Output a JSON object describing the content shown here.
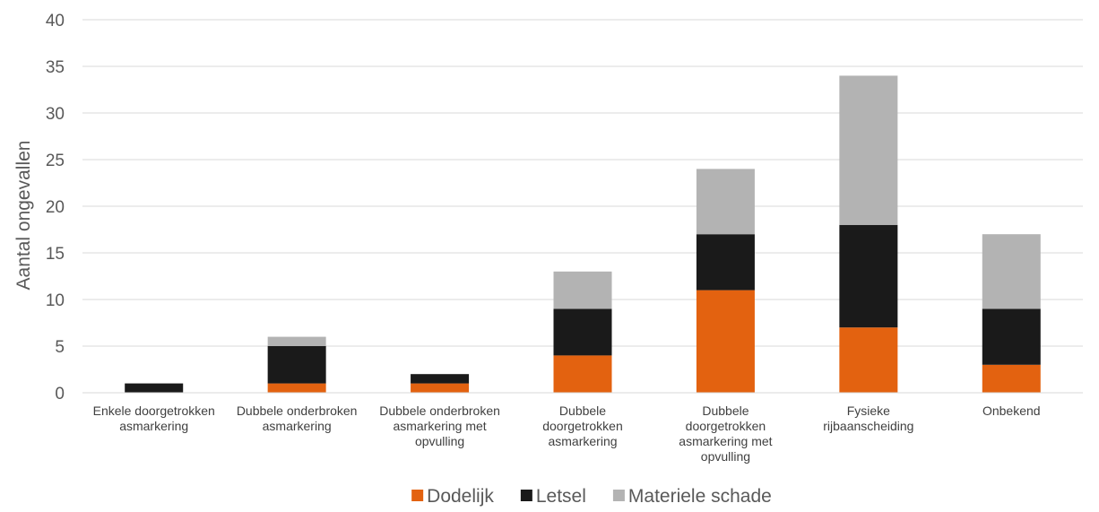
{
  "chart_data": {
    "type": "bar",
    "stacked": true,
    "title": "",
    "xlabel": "",
    "ylabel": "Aantal ongevallen",
    "ylim": [
      0,
      40
    ],
    "yticks": [
      0,
      5,
      10,
      15,
      20,
      25,
      30,
      35,
      40
    ],
    "grid": true,
    "legend_position": "bottom",
    "categories": [
      [
        "Enkele doorgetrokken",
        "asmarkering"
      ],
      [
        "Dubbele onderbroken",
        "asmarkering"
      ],
      [
        "Dubbele onderbroken",
        "asmarkering met",
        "opvulling"
      ],
      [
        "Dubbele",
        "doorgetrokken",
        "asmarkering"
      ],
      [
        "Dubbele",
        "doorgetrokken",
        "asmarkering met",
        "opvulling"
      ],
      [
        "Fysieke",
        "rijbaanscheiding"
      ],
      [
        "Onbekend"
      ]
    ],
    "series": [
      {
        "name": "Dodelijk",
        "color": "#E36210",
        "values": [
          0,
          1,
          1,
          4,
          11,
          7,
          3
        ]
      },
      {
        "name": "Letsel",
        "color": "#1A1A1A",
        "values": [
          1,
          4,
          1,
          5,
          6,
          11,
          6
        ]
      },
      {
        "name": "Materiele schade",
        "color": "#B3B3B3",
        "values": [
          0,
          1,
          0,
          4,
          7,
          16,
          8
        ]
      }
    ]
  }
}
